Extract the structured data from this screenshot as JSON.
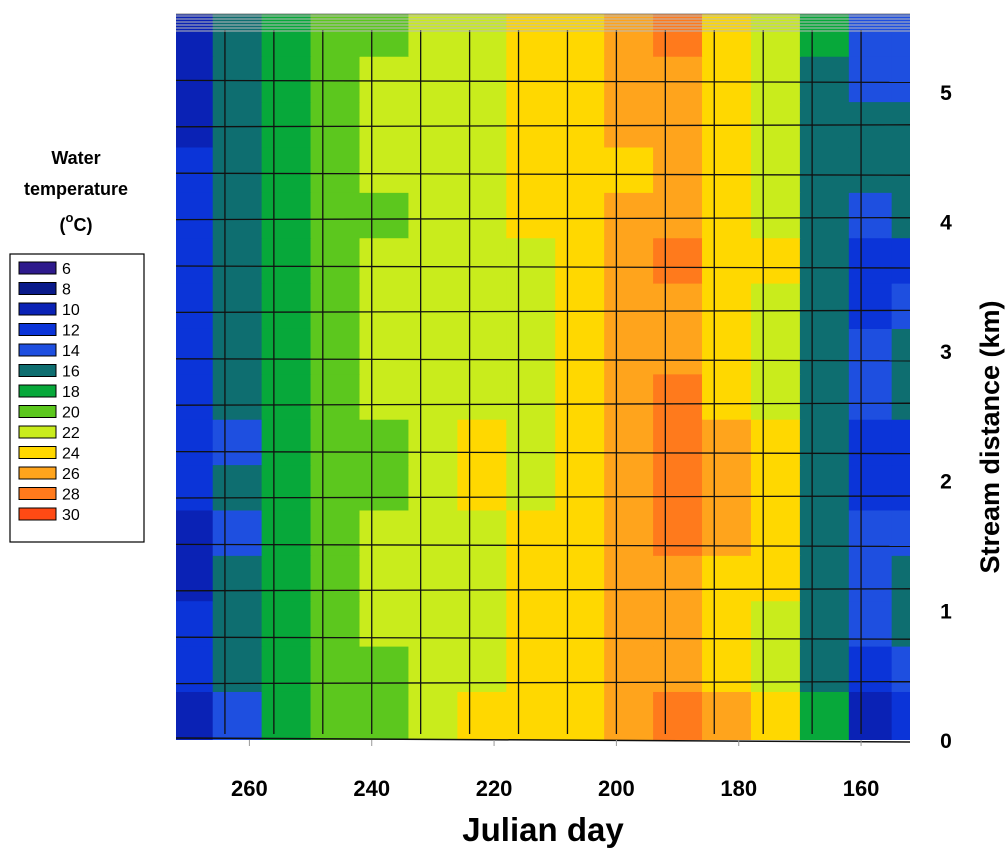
{
  "chart_data": {
    "type": "heatmap",
    "title": "",
    "xlabel": "Julian day",
    "ylabel": "Stream distance (km)",
    "x_ticks": [
      260,
      240,
      220,
      200,
      180,
      160
    ],
    "y_ticks": [
      0,
      1,
      2,
      3,
      4,
      5
    ],
    "xlim": [
      272,
      152
    ],
    "ylim": [
      0,
      5.6
    ],
    "x_reversed": true,
    "grid": true,
    "legend": {
      "title_line1": "Water",
      "title_line2": "temperature",
      "units": "(oC)",
      "units_base": "(",
      "units_sup": "o",
      "units_after": "C)",
      "placement": "left",
      "levels": [
        6,
        8,
        10,
        12,
        14,
        16,
        18,
        20,
        22,
        24,
        26,
        28,
        30
      ],
      "labels": [
        "6",
        "8",
        "10",
        "12",
        "14",
        "16",
        "18",
        "20",
        "22",
        "24",
        "26",
        "28",
        "30"
      ],
      "colors": [
        "#2e1a8c",
        "#0a1a8a",
        "#0a22b5",
        "#0b34d8",
        "#1e4fe0",
        "#0e6e70",
        "#07a83a",
        "#5cc71e",
        "#c9ec1c",
        "#ffd800",
        "#ffa41c",
        "#ff7a1c",
        "#ff4a14"
      ]
    },
    "x": [
      270,
      262,
      254,
      246,
      238,
      230,
      222,
      214,
      206,
      198,
      190,
      182,
      174,
      166,
      158,
      152
    ],
    "y": [
      0.2,
      0.55,
      0.9,
      1.25,
      1.6,
      1.95,
      2.3,
      2.65,
      3.0,
      3.35,
      3.7,
      4.05,
      4.4,
      4.75,
      5.1,
      5.45
    ],
    "z": [
      [
        11.5,
        15.5,
        18.5,
        20.5,
        21.5,
        23.5,
        24.5,
        25.0,
        25.5,
        26.5,
        28.5,
        26.0,
        24.5,
        18.5,
        11.5,
        13.5
      ],
      [
        13.5,
        16.5,
        18.5,
        20.0,
        21.5,
        22.5,
        23.5,
        24.5,
        25.5,
        26.5,
        27.5,
        25.5,
        23.0,
        17.5,
        13.5,
        15.0
      ],
      [
        12.5,
        16.5,
        19.0,
        21.0,
        22.0,
        22.5,
        23.0,
        24.5,
        25.5,
        26.5,
        27.0,
        25.5,
        23.0,
        17.0,
        15.0,
        16.5
      ],
      [
        11.5,
        16.0,
        19.5,
        21.0,
        22.0,
        22.5,
        23.5,
        24.5,
        25.5,
        26.5,
        27.5,
        25.5,
        24.0,
        17.5,
        15.5,
        16.0
      ],
      [
        11.5,
        15.5,
        19.0,
        20.5,
        22.0,
        23.0,
        23.5,
        24.0,
        25.0,
        26.5,
        28.0,
        26.0,
        24.5,
        17.5,
        14.5,
        15.5
      ],
      [
        12.0,
        16.0,
        18.5,
        20.5,
        21.5,
        22.5,
        24.5,
        23.5,
        24.5,
        26.5,
        29.5,
        26.0,
        25.5,
        17.0,
        12.5,
        13.5
      ],
      [
        12.5,
        15.5,
        18.0,
        20.5,
        21.5,
        22.5,
        24.5,
        23.0,
        24.5,
        26.5,
        29.0,
        26.0,
        24.5,
        16.5,
        12.0,
        13.0
      ],
      [
        13.5,
        16.5,
        19.0,
        20.0,
        22.0,
        23.5,
        23.5,
        23.0,
        24.5,
        26.0,
        28.0,
        25.5,
        23.5,
        17.0,
        14.5,
        16.0
      ],
      [
        13.0,
        16.5,
        19.0,
        20.5,
        22.0,
        23.0,
        23.5,
        22.5,
        24.5,
        26.0,
        27.0,
        25.0,
        23.0,
        17.0,
        15.5,
        17.0
      ],
      [
        13.0,
        16.5,
        19.5,
        21.0,
        22.5,
        22.5,
        22.0,
        23.0,
        24.5,
        26.0,
        27.5,
        25.5,
        23.5,
        17.0,
        13.5,
        15.0
      ],
      [
        12.5,
        16.0,
        19.0,
        20.5,
        22.5,
        22.5,
        23.0,
        23.5,
        24.5,
        26.5,
        28.5,
        25.5,
        24.0,
        16.5,
        12.5,
        13.5
      ],
      [
        13.5,
        16.5,
        19.0,
        20.5,
        21.5,
        22.5,
        23.5,
        24.0,
        24.5,
        26.0,
        27.0,
        25.0,
        23.5,
        16.5,
        14.5,
        16.0
      ],
      [
        12.5,
        16.5,
        19.0,
        20.5,
        22.0,
        22.5,
        23.5,
        24.0,
        24.5,
        25.5,
        27.0,
        25.0,
        23.5,
        17.0,
        16.5,
        17.0
      ],
      [
        11.5,
        16.5,
        19.5,
        21.0,
        22.5,
        23.0,
        23.5,
        24.0,
        24.5,
        26.0,
        27.5,
        25.5,
        23.5,
        17.0,
        16.5,
        16.5
      ],
      [
        11.5,
        16.5,
        19.5,
        20.5,
        22.0,
        22.5,
        23.5,
        24.0,
        24.5,
        26.0,
        27.5,
        25.0,
        23.0,
        17.5,
        15.5,
        15.5
      ],
      [
        11.0,
        16.0,
        19.0,
        20.5,
        21.5,
        22.0,
        23.0,
        24.0,
        24.5,
        26.0,
        28.0,
        25.5,
        23.5,
        18.0,
        14.5,
        15.0
      ]
    ]
  }
}
